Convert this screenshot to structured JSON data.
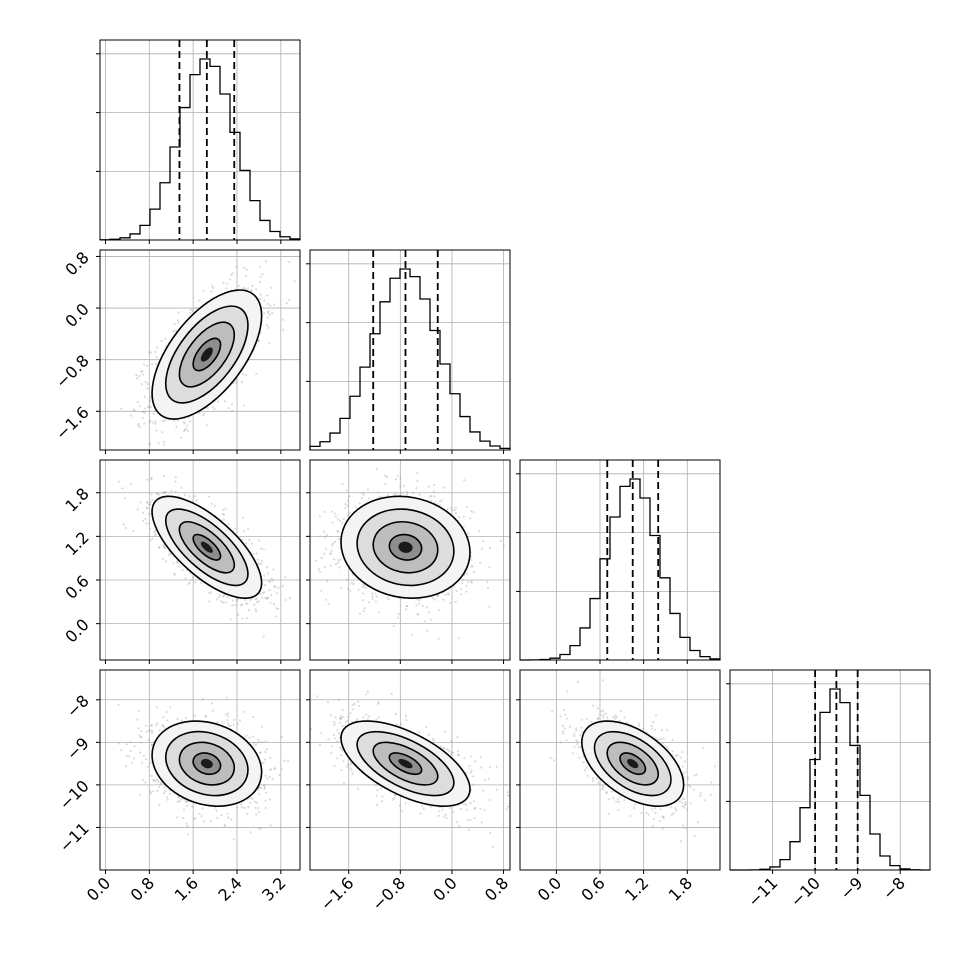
{
  "chart_data": {
    "type": "corner",
    "title": "",
    "grid": true,
    "parameters": [
      {
        "name": "",
        "mean": 1.85,
        "std": 0.5,
        "range": [
          -0.1,
          3.55
        ],
        "quantiles": [
          1.35,
          1.85,
          2.35
        ],
        "ticks": [
          {
            "v": 0.0,
            "label": "0.0"
          },
          {
            "v": 0.8,
            "label": "0.8"
          },
          {
            "v": 1.6,
            "label": "1.6"
          },
          {
            "v": 2.4,
            "label": "2.4"
          },
          {
            "v": 3.2,
            "label": "3.2"
          }
        ]
      },
      {
        "name": "",
        "mean": -0.72,
        "std": 0.5,
        "range": [
          -2.2,
          0.9
        ],
        "quantiles": [
          -1.22,
          -0.72,
          -0.22
        ],
        "ticks": [
          {
            "v": -1.6,
            "label": "−1.6"
          },
          {
            "v": -0.8,
            "label": "−0.8"
          },
          {
            "v": 0.0,
            "label": "0.0"
          },
          {
            "v": 0.8,
            "label": "0.8"
          }
        ]
      },
      {
        "name": "",
        "mean": 1.05,
        "std": 0.35,
        "range": [
          -0.5,
          2.25
        ],
        "quantiles": [
          0.7,
          1.05,
          1.4
        ],
        "ticks": [
          {
            "v": 0.0,
            "label": "0.0"
          },
          {
            "v": 0.6,
            "label": "0.6"
          },
          {
            "v": 1.2,
            "label": "1.2"
          },
          {
            "v": 1.8,
            "label": "1.8"
          }
        ]
      },
      {
        "name": "",
        "mean": -9.5,
        "std": 0.5,
        "range": [
          -12.0,
          -7.3
        ],
        "quantiles": [
          -10.0,
          -9.5,
          -9.0
        ],
        "ticks": [
          {
            "v": -11,
            "label": "−11"
          },
          {
            "v": -10,
            "label": "−10"
          },
          {
            "v": -9,
            "label": "−9"
          },
          {
            "v": -8,
            "label": "−8"
          }
        ]
      }
    ],
    "correlations": [
      [
        1,
        0.6,
        -0.7,
        -0.2
      ],
      [
        0.6,
        1,
        -0.1,
        -0.6
      ],
      [
        -0.7,
        -0.1,
        1,
        -0.5
      ],
      [
        -0.2,
        -0.6,
        -0.5,
        1
      ]
    ],
    "contour_levels_sigma": [
      0.5,
      1.0,
      1.5,
      2.0
    ]
  }
}
